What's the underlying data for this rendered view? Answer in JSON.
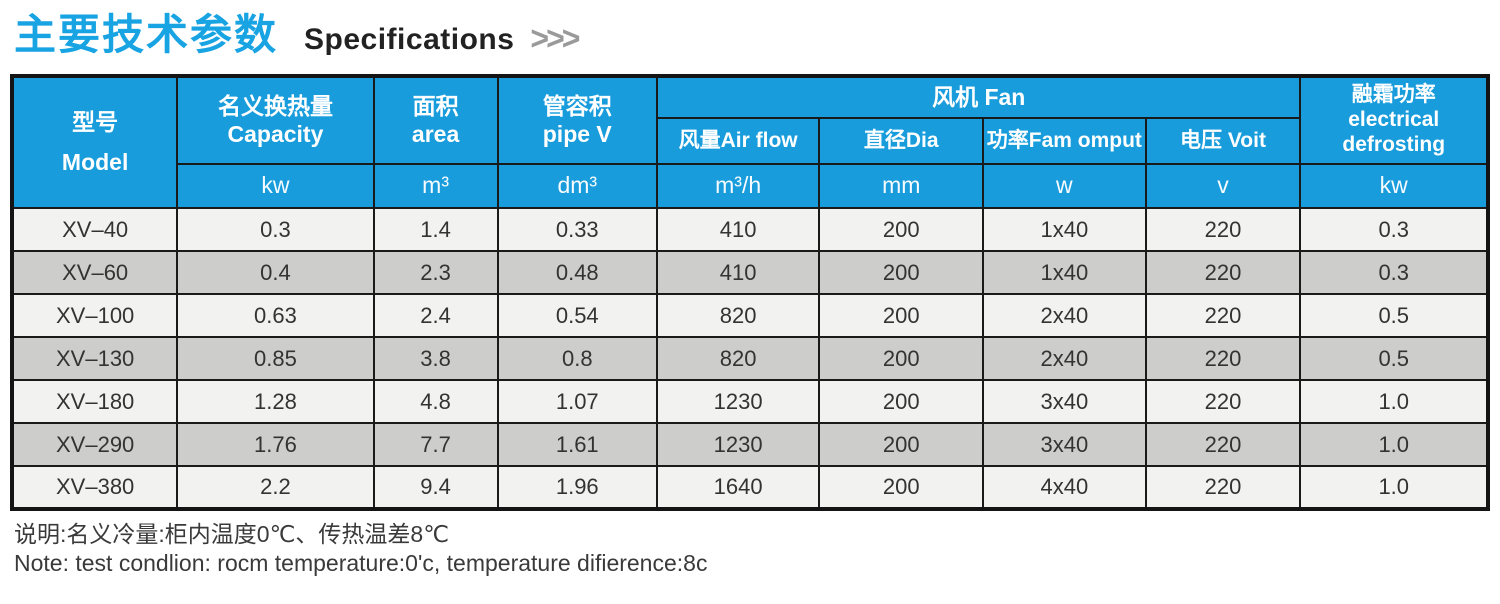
{
  "title": {
    "zh": "主要技术参数",
    "en": "Specifications",
    "chevrons": ">>>"
  },
  "table": {
    "header": {
      "model": {
        "zh": "型号",
        "en": "Model"
      },
      "capacity": {
        "zh": "名义换热量",
        "en": "Capacity",
        "unit": "kw"
      },
      "area": {
        "zh": "面积",
        "en": "area",
        "unit": "m³"
      },
      "pipe_v": {
        "zh": "管容积",
        "en": "pipe V",
        "unit": "dm³"
      },
      "fan": {
        "label": "风机 Fan",
        "air_flow": {
          "label": "风量Air flow",
          "unit": "m³/h"
        },
        "dia": {
          "label": "直径Dia",
          "unit": "mm"
        },
        "power": {
          "label": "功率Fam omput",
          "unit": "w"
        },
        "volt": {
          "label": "电压 Voit",
          "unit": "v"
        }
      },
      "defrost": {
        "zh": "融霜功率",
        "en1": "electrical",
        "en2": "defrosting",
        "unit": "kw"
      }
    },
    "rows": [
      [
        "XV–40",
        "0.3",
        "1.4",
        "0.33",
        "410",
        "200",
        "1x40",
        "220",
        "0.3"
      ],
      [
        "XV–60",
        "0.4",
        "2.3",
        "0.48",
        "410",
        "200",
        "1x40",
        "220",
        "0.3"
      ],
      [
        "XV–100",
        "0.63",
        "2.4",
        "0.54",
        "820",
        "200",
        "2x40",
        "220",
        "0.5"
      ],
      [
        "XV–130",
        "0.85",
        "3.8",
        "0.8",
        "820",
        "200",
        "2x40",
        "220",
        "0.5"
      ],
      [
        "XV–180",
        "1.28",
        "4.8",
        "1.07",
        "1230",
        "200",
        "3x40",
        "220",
        "1.0"
      ],
      [
        "XV–290",
        "1.76",
        "7.7",
        "1.61",
        "1230",
        "200",
        "3x40",
        "220",
        "1.0"
      ],
      [
        "XV–380",
        "2.2",
        "9.4",
        "1.96",
        "1640",
        "200",
        "4x40",
        "220",
        "1.0"
      ]
    ]
  },
  "notes": {
    "zh": "说明:名义冷量:柜内温度0℃、传热温差8℃",
    "en": "Note: test condlion: rocm temperature:0'c, temperature difierence:8c"
  },
  "colors": {
    "header_blue": "#189cdc",
    "title_blue": "#18a3e3",
    "row_light": "#f2f2f0",
    "row_dark": "#cdcdcb",
    "border": "#1a1a1a",
    "chevron_gray": "#9a9a9a"
  }
}
